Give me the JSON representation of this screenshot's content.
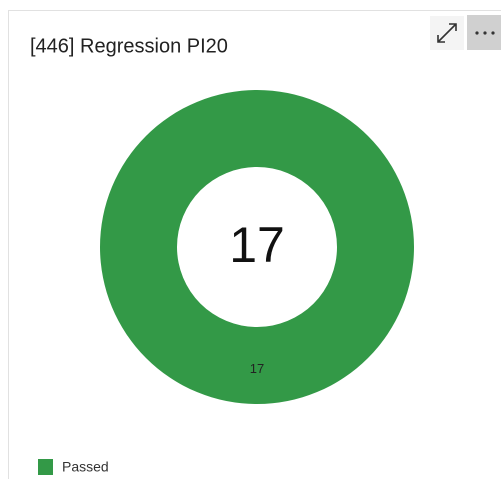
{
  "chart_data": {
    "type": "pie",
    "title": "[446] Regression PI20",
    "total": 17,
    "categories": [
      "Passed"
    ],
    "values": [
      17
    ],
    "colors": [
      "#339947"
    ],
    "donut": true,
    "legend": "bottom-left"
  }
}
